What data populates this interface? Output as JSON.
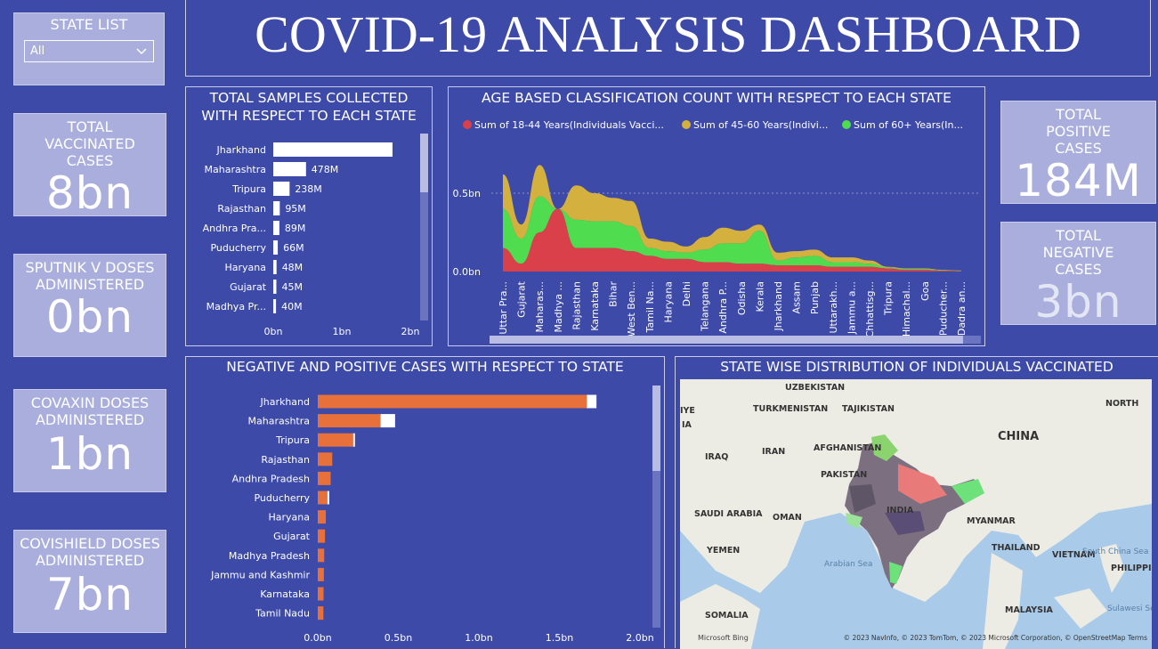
{
  "header": {
    "title": "COVID-19 ANALYSIS DASHBOARD"
  },
  "state_list": {
    "label": "STATE LIST",
    "selected": "All"
  },
  "kpis": {
    "vaccinated": {
      "label": "TOTAL VACCINATED CASES",
      "value": "8bn"
    },
    "sputnik": {
      "label": "SPUTNIK V DOSES ADMINISTERED",
      "value": "0bn"
    },
    "covaxin": {
      "label": "COVAXIN DOSES ADMINISTERED",
      "value": "1bn"
    },
    "covishield": {
      "label": "COVISHIELD DOSES ADMINISTERED",
      "value": "7bn"
    },
    "positive": {
      "label": "TOTAL POSITIVE CASES",
      "value": "184M"
    },
    "negative": {
      "label": "TOTAL NEGATIVE CASES",
      "value": "3bn"
    }
  },
  "samples_chart": {
    "title": "TOTAL SAMPLES COLLECTED WITH RESPECT TO EACH STATE",
    "x_ticks": [
      "0bn",
      "1bn",
      "2bn"
    ]
  },
  "age_chart": {
    "title": "AGE BASED CLASSIFICATION COUNT WITH RESPECT TO EACH STATE",
    "legend": [
      "Sum of 18-44 Years(Individuals Vacci...",
      "Sum of 45-60 Years(Indivi...",
      "Sum of 60+ Years(In..."
    ],
    "y_ticks": [
      "0.5bn",
      "0.0bn"
    ]
  },
  "cases_chart": {
    "title": "NEGATIVE AND POSITIVE CASES WITH RESPECT TO STATE",
    "x_ticks": [
      "0.0bn",
      "0.5bn",
      "1.0bn",
      "1.5bn",
      "2.0bn"
    ]
  },
  "map": {
    "title": "STATE WISE DISTRIBUTION OF INDIVIDUALS VACCINATED",
    "labels": [
      "UZBEKISTAN",
      "TURKMENISTAN",
      "TAJIKISTAN",
      "AFGHANISTAN",
      "IRAQ",
      "IRAN",
      "PAKISTAN",
      "CHINA",
      "NORTH",
      "SAUDI ARABIA",
      "OMAN",
      "INDIA",
      "MYANMAR",
      "YEMEN",
      "THAILAND",
      "VIETNAM",
      "South China Sea",
      "Arabian Sea",
      "PHILIPPINE",
      "SOMALIA",
      "MALAYSIA",
      "Sulawesi Sea",
      "IYE",
      "IA"
    ],
    "copyright": "© 2023 NavInfo, © 2023 TomTom, © 2023 Microsoft Corporation, © OpenStreetMap Terms",
    "bing": "Microsoft Bing"
  },
  "colors": {
    "background": "#3d4aa8",
    "card": "#a9aedc",
    "bar_orange": "#e8703a",
    "age_red": "#d9404a",
    "age_yellow": "#d4b13f",
    "age_green": "#4fdc4f"
  },
  "chart_data": [
    {
      "type": "bar",
      "title": "TOTAL SAMPLES COLLECTED WITH RESPECT TO EACH STATE",
      "categories": [
        "Jharkhand",
        "Maharashtra",
        "Tripura",
        "Rajasthan",
        "Andhra Pra...",
        "Puducherry",
        "Haryana",
        "Gujarat",
        "Madhya Pr..."
      ],
      "values": [
        1.74,
        0.478,
        0.238,
        0.095,
        0.089,
        0.066,
        0.048,
        0.045,
        0.04
      ],
      "data_labels": [
        "",
        "478M",
        "238M",
        "95M",
        "89M",
        "66M",
        "48M",
        "45M",
        "40M"
      ],
      "xlim": [
        0,
        2
      ],
      "x_ticks": [
        "0bn",
        "1bn",
        "2bn"
      ]
    },
    {
      "type": "area",
      "title": "AGE BASED CLASSIFICATION COUNT WITH RESPECT TO EACH STATE",
      "categories": [
        "Uttar Pra...",
        "Gujarat",
        "Maharas...",
        "Madhya ...",
        "Rajasthan",
        "Karnataka",
        "Bihar",
        "West Ben...",
        "Tamil Na...",
        "Haryana",
        "Delhi",
        "Telangana",
        "Andhra P...",
        "Odisha",
        "Kerala",
        "Jharkhand",
        "Assam",
        "Punjab",
        "Uttarakh...",
        "Jammu a...",
        "Chhattisg...",
        "Tripura",
        "Himachal...",
        "Goa",
        "Puducher...",
        "Dadra an..."
      ],
      "series": [
        {
          "name": "Sum of 18-44 Years(Individuals Vacci...",
          "values": [
            0.15,
            0.05,
            0.25,
            0.4,
            0.15,
            0.15,
            0.15,
            0.13,
            0.1,
            0.08,
            0.08,
            0.06,
            0.06,
            0.05,
            0.05,
            0.04,
            0.04,
            0.04,
            0.03,
            0.03,
            0.03,
            0.02,
            0.01,
            0.01,
            0.005,
            0.003
          ]
        },
        {
          "name": "Sum of 45-60 Years(Indivi...",
          "values": [
            0.22,
            0.09,
            0.2,
            0.0,
            0.22,
            0.18,
            0.15,
            0.16,
            0.06,
            0.06,
            0.04,
            0.08,
            0.1,
            0.08,
            0.04,
            0.05,
            0.04,
            0.04,
            0.03,
            0.03,
            0.02,
            0.005,
            0.005,
            0.005,
            0.003,
            0.002
          ]
        },
        {
          "name": "Sum of 60+ Years(In...",
          "values": [
            0.25,
            0.16,
            0.23,
            0.0,
            0.18,
            0.17,
            0.17,
            0.16,
            0.05,
            0.05,
            0.04,
            0.08,
            0.12,
            0.13,
            0.21,
            0.03,
            0.05,
            0.06,
            0.03,
            0.03,
            0.02,
            0.005,
            0.005,
            0.005,
            0.003,
            0.002
          ]
        }
      ],
      "y_ticks": [
        "0.5bn",
        "0.0bn"
      ]
    },
    {
      "type": "bar",
      "title": "NEGATIVE AND POSITIVE CASES WITH RESPECT TO STATE",
      "categories": [
        "Jharkhand",
        "Maharashtra",
        "Tripura",
        "Rajasthan",
        "Andhra Pradesh",
        "Puducherry",
        "Haryana",
        "Gujarat",
        "Madhya Pradesh",
        "Jammu and Kashmir",
        "Karnataka",
        "Tamil Nadu"
      ],
      "series": [
        {
          "name": "negative",
          "values": [
            1.67,
            0.39,
            0.22,
            0.09,
            0.08,
            0.06,
            0.05,
            0.045,
            0.04,
            0.038,
            0.036,
            0.035
          ]
        },
        {
          "name": "positive",
          "values": [
            0.06,
            0.09,
            0.01,
            0.0,
            0.0,
            0.005,
            0.0,
            0.0,
            0.0,
            0.0,
            0.0,
            0.0
          ]
        }
      ],
      "xlim": [
        0,
        2.0
      ],
      "x_ticks": [
        "0.0bn",
        "0.5bn",
        "1.0bn",
        "1.5bn",
        "2.0bn"
      ]
    }
  ]
}
